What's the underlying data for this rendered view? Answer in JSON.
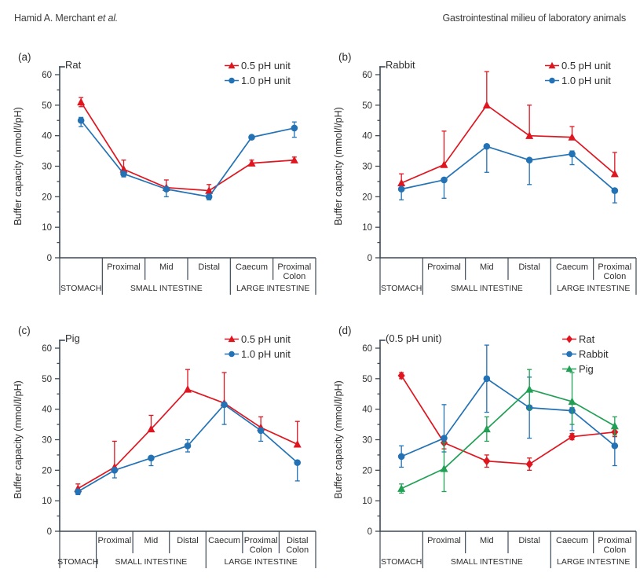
{
  "header": {
    "left_name": "Hamid A. Merchant ",
    "left_etal": "et al.",
    "right": "Gastrointestinal milieu of laboratory animals"
  },
  "colors": {
    "red": "#df1620",
    "blue": "#2272b5",
    "green": "#21a055",
    "axis": "#3e4a56"
  },
  "chart_data": [
    {
      "panel": "(a)",
      "title": "Rat",
      "type": "line",
      "ylabel": "Buffer capacity (mmol/l/pH)",
      "ylim": [
        0,
        60
      ],
      "yticks": [
        0,
        10,
        20,
        30,
        40,
        50,
        60
      ],
      "yminor_step": 5,
      "grid": false,
      "legend_position": "top-right",
      "segment_labels": [
        "",
        "Proximal",
        "Mid",
        "Distal",
        "Caecum",
        "Proximal\nColon"
      ],
      "regions": [
        {
          "label": "STOMACH",
          "from": 0,
          "to": 1
        },
        {
          "label": "SMALL INTESTINE",
          "from": 1,
          "to": 4
        },
        {
          "label": "LARGE INTESTINE",
          "from": 4,
          "to": 6
        }
      ],
      "series": [
        {
          "name": "0.5 pH unit",
          "color": "#df1620",
          "marker": "triangle",
          "values": [
            51,
            29,
            23,
            22,
            31,
            32
          ],
          "err_up": [
            1.5,
            3,
            2.5,
            2,
            1,
            1
          ],
          "err_down": [
            1.5,
            0,
            0,
            0,
            0,
            0
          ]
        },
        {
          "name": "1.0 pH unit",
          "color": "#2272b5",
          "marker": "circle",
          "values": [
            45,
            27.5,
            22.5,
            20,
            39.5,
            42.5
          ],
          "err_up": [
            1,
            0,
            0,
            0,
            0,
            2
          ],
          "err_down": [
            2,
            1,
            2.5,
            1,
            0,
            3
          ]
        }
      ]
    },
    {
      "panel": "(b)",
      "title": "Rabbit",
      "type": "line",
      "ylabel": "Buffer capacity (mmol/l/pH)",
      "ylim": [
        0,
        60
      ],
      "yticks": [
        0,
        10,
        20,
        30,
        40,
        50,
        60
      ],
      "yminor_step": 5,
      "grid": false,
      "legend_position": "top-right",
      "segment_labels": [
        "",
        "Proximal",
        "Mid",
        "Distal",
        "Caecum",
        "Proximal\nColon"
      ],
      "regions": [
        {
          "label": "STOMACH",
          "from": 0,
          "to": 1
        },
        {
          "label": "SMALL INTESTINE",
          "from": 1,
          "to": 4
        },
        {
          "label": "LARGE INTESTINE",
          "from": 4,
          "to": 6
        }
      ],
      "series": [
        {
          "name": "0.5 pH unit",
          "color": "#df1620",
          "marker": "triangle",
          "values": [
            24.5,
            30.5,
            50,
            40,
            39.5,
            27.5
          ],
          "err_up": [
            3,
            11,
            11,
            10,
            3.5,
            7
          ],
          "err_down": [
            1.5,
            0,
            0,
            0,
            0,
            0
          ]
        },
        {
          "name": "1.0 pH unit",
          "color": "#2272b5",
          "marker": "circle",
          "values": [
            22.5,
            25.5,
            36.5,
            32,
            34,
            22
          ],
          "err_up": [
            0,
            0,
            0,
            0,
            1,
            0
          ],
          "err_down": [
            3.5,
            6,
            8.5,
            8,
            3.5,
            4
          ]
        }
      ]
    },
    {
      "panel": "(c)",
      "title": "Pig",
      "type": "line",
      "ylabel": "Buffer capacity (mmol/l/pH)",
      "ylim": [
        0,
        60
      ],
      "yticks": [
        0,
        10,
        20,
        30,
        40,
        50,
        60
      ],
      "yminor_step": 5,
      "grid": false,
      "legend_position": "top-right",
      "segment_labels": [
        "",
        "Proximal",
        "Mid",
        "Distal",
        "Caecum",
        "Proximal\nColon",
        "Distal\nColon"
      ],
      "regions": [
        {
          "label": "STOMACH",
          "from": 0,
          "to": 1
        },
        {
          "label": "SMALL INTESTINE",
          "from": 1,
          "to": 4
        },
        {
          "label": "LARGE INTESTINE",
          "from": 4,
          "to": 7
        }
      ],
      "series": [
        {
          "name": "0.5 pH unit",
          "color": "#df1620",
          "marker": "triangle",
          "values": [
            14,
            21,
            33.5,
            46.5,
            42,
            34,
            28.5
          ],
          "err_up": [
            1.5,
            8.5,
            4.5,
            6.5,
            10,
            3.5,
            7.5
          ],
          "err_down": [
            1,
            0,
            0,
            0,
            0,
            0,
            0
          ]
        },
        {
          "name": "1.0 pH unit",
          "color": "#2272b5",
          "marker": "circle",
          "values": [
            13,
            20,
            24,
            28,
            41.5,
            33,
            22.5
          ],
          "err_up": [
            0,
            0,
            0,
            2,
            0,
            0,
            0
          ],
          "err_down": [
            1,
            2.5,
            2.5,
            2,
            6.5,
            3.5,
            6
          ]
        }
      ]
    },
    {
      "panel": "(d)",
      "title": "(0.5 pH unit)",
      "type": "line",
      "ylabel": "Buffer capacity (mmol/l/pH)",
      "ylim": [
        0,
        60
      ],
      "yticks": [
        0,
        10,
        20,
        30,
        40,
        50,
        60
      ],
      "yminor_step": 5,
      "grid": false,
      "legend_position": "top-right",
      "segment_labels": [
        "",
        "Proximal",
        "Mid",
        "Distal",
        "Caecum",
        "Proximal\nColon"
      ],
      "regions": [
        {
          "label": "STOMACH",
          "from": 0,
          "to": 1
        },
        {
          "label": "SMALL INTESTINE",
          "from": 1,
          "to": 4
        },
        {
          "label": "LARGE INTESTINE",
          "from": 4,
          "to": 6
        }
      ],
      "series": [
        {
          "name": "Rat",
          "color": "#df1620",
          "marker": "diamond",
          "values": [
            51,
            29,
            23,
            22,
            31,
            32.5
          ],
          "err_up": [
            1,
            2,
            2,
            2,
            1,
            1.5
          ],
          "err_down": [
            1,
            2,
            2,
            2,
            1,
            1.5
          ]
        },
        {
          "name": "Rabbit",
          "color": "#2272b5",
          "marker": "circle",
          "values": [
            24.5,
            30.5,
            50,
            40.5,
            39.5,
            28
          ],
          "err_up": [
            3.5,
            11,
            11,
            10,
            1,
            6.5
          ],
          "err_down": [
            3.5,
            4.5,
            11,
            10,
            6.5,
            6.5
          ]
        },
        {
          "name": "Pig",
          "color": "#21a055",
          "marker": "triangle",
          "values": [
            14,
            20.5,
            33.5,
            46.5,
            42.5,
            34.5
          ],
          "err_up": [
            1.5,
            8.5,
            4,
            6.5,
            9.5,
            3
          ],
          "err_down": [
            1.5,
            7.5,
            4,
            6.5,
            7.5,
            3
          ]
        }
      ]
    }
  ]
}
